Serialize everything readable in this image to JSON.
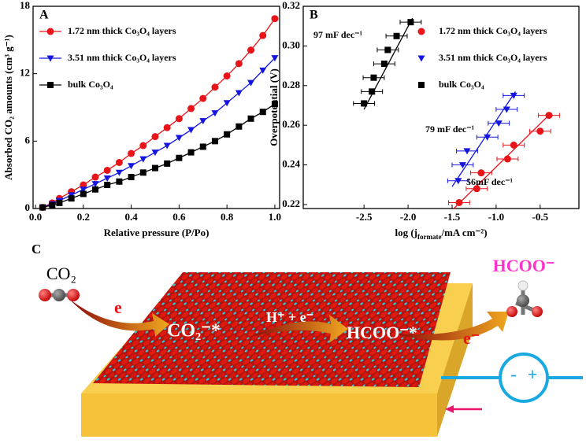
{
  "chart_data": [
    {
      "type": "line",
      "panel": "A",
      "xlabel": "Relative pressure (P/Po)",
      "ylabel": "Absorbed CO₂ amounts (cm³ g⁻¹)",
      "x": [
        0.03,
        0.07,
        0.1,
        0.15,
        0.2,
        0.25,
        0.3,
        0.35,
        0.4,
        0.45,
        0.5,
        0.55,
        0.6,
        0.65,
        0.7,
        0.75,
        0.8,
        0.85,
        0.9,
        0.95,
        1.0
      ],
      "series": [
        {
          "name": "1.72 nm thick Co₃O₄ layers",
          "color": "#e8141a",
          "marker": "circle",
          "values": [
            0.1,
            0.5,
            0.9,
            1.5,
            2.1,
            2.8,
            3.4,
            4.1,
            4.9,
            5.6,
            6.4,
            7.2,
            8.0,
            8.9,
            9.8,
            10.8,
            11.8,
            12.9,
            14.1,
            15.4,
            16.9
          ]
        },
        {
          "name": "3.51 nm thick Co₃O₄ layers",
          "color": "#1416e0",
          "marker": "triangle",
          "values": [
            0.1,
            0.4,
            0.7,
            1.2,
            1.7,
            2.2,
            2.7,
            3.2,
            3.8,
            4.4,
            5.0,
            5.6,
            6.3,
            7.0,
            7.8,
            8.5,
            9.4,
            10.3,
            11.2,
            12.3,
            13.4
          ]
        },
        {
          "name": "bulk Co₃O₄",
          "color": "#000000",
          "marker": "square",
          "values": [
            0.1,
            0.3,
            0.5,
            0.9,
            1.3,
            1.7,
            2.1,
            2.4,
            2.8,
            3.2,
            3.6,
            4.0,
            4.5,
            5.0,
            5.5,
            6.0,
            6.6,
            7.3,
            8.0,
            8.6,
            9.3
          ]
        }
      ],
      "xlim": [
        -0.01,
        1.02
      ],
      "xticks": [
        {
          "value": 0,
          "label": "0.0"
        },
        0.2,
        0.4,
        0.6,
        0.8,
        {
          "value": 1,
          "label": "1.0"
        }
      ],
      "ylim": [
        0,
        18
      ],
      "yticks": [
        0,
        6,
        12,
        18
      ],
      "legend": "upper left"
    },
    {
      "type": "scatter",
      "panel": "B",
      "xlabel": [
        "log (j",
        "formate",
        "/mA cm⁻²)"
      ],
      "ylabel": "Overpotential (V)",
      "series": [
        {
          "name": "1.72 nm thick Co₃O₄ layers",
          "color": "#e8141a",
          "marker": "circle",
          "x": [
            -1.42,
            -1.22,
            -1.17,
            -0.87,
            -0.8,
            -0.5,
            -0.4
          ],
          "values": [
            0.221,
            0.228,
            0.236,
            0.243,
            0.25,
            0.257,
            0.265
          ],
          "xerr": [
            0.12,
            0.12,
            0.12,
            0.12,
            0.12,
            0.12,
            0.12
          ],
          "fit_x": [
            -1.48,
            -0.38
          ],
          "fit_y": [
            0.218,
            0.266
          ]
        },
        {
          "name": "3.51 nm thick Co₃O₄ layers",
          "color": "#1416e0",
          "marker": "triangle",
          "x": [
            -1.43,
            -1.38,
            -1.33,
            -1.1,
            -0.97,
            -0.88,
            -0.8
          ],
          "values": [
            0.232,
            0.24,
            0.247,
            0.254,
            0.261,
            0.268,
            0.275
          ],
          "xerr": [
            0.12,
            0.12,
            0.12,
            0.12,
            0.12,
            0.12,
            0.12
          ],
          "fit_x": [
            -1.5,
            -0.78
          ],
          "fit_y": [
            0.229,
            0.277
          ]
        },
        {
          "name": "bulk Co₃O₄",
          "color": "#000000",
          "marker": "square",
          "x": [
            -2.5,
            -2.41,
            -2.39,
            -2.27,
            -2.23,
            -2.13,
            -1.97
          ],
          "values": [
            0.271,
            0.277,
            0.284,
            0.291,
            0.298,
            0.305,
            0.312
          ],
          "xerr": [
            0.12,
            0.12,
            0.12,
            0.12,
            0.12,
            0.12,
            0.12
          ],
          "fit_x": [
            -2.5,
            -1.95
          ],
          "fit_y": [
            0.268,
            0.314
          ]
        }
      ],
      "annotations": [
        "97 mF dec⁻¹",
        "79 mF dec⁻¹",
        "56mF dec⁻¹"
      ],
      "xlim": [
        -3.19,
        -0.06
      ],
      "xticks": [
        -2.5,
        {
          "value": -2,
          "label": "-2.0"
        },
        -1.5,
        {
          "value": -1,
          "label": "-1.0"
        },
        -0.5
      ],
      "ylim": [
        0.218,
        0.32
      ],
      "yticks": [
        0.22,
        0.24,
        0.26,
        0.28,
        {
          "value": 0.3,
          "label": "0.30"
        },
        0.32
      ],
      "legend": "upper right"
    }
  ],
  "illustration": {
    "panel": "C",
    "co2": "CO₂",
    "e": "e",
    "adsorbed": "CO₂⁻*",
    "protons": "H⁺ + e⁻",
    "intermediate": "HCOO⁻*",
    "product": "HCOO⁻",
    "electron": "e⁻",
    "minus": "-",
    "plus": "+"
  }
}
